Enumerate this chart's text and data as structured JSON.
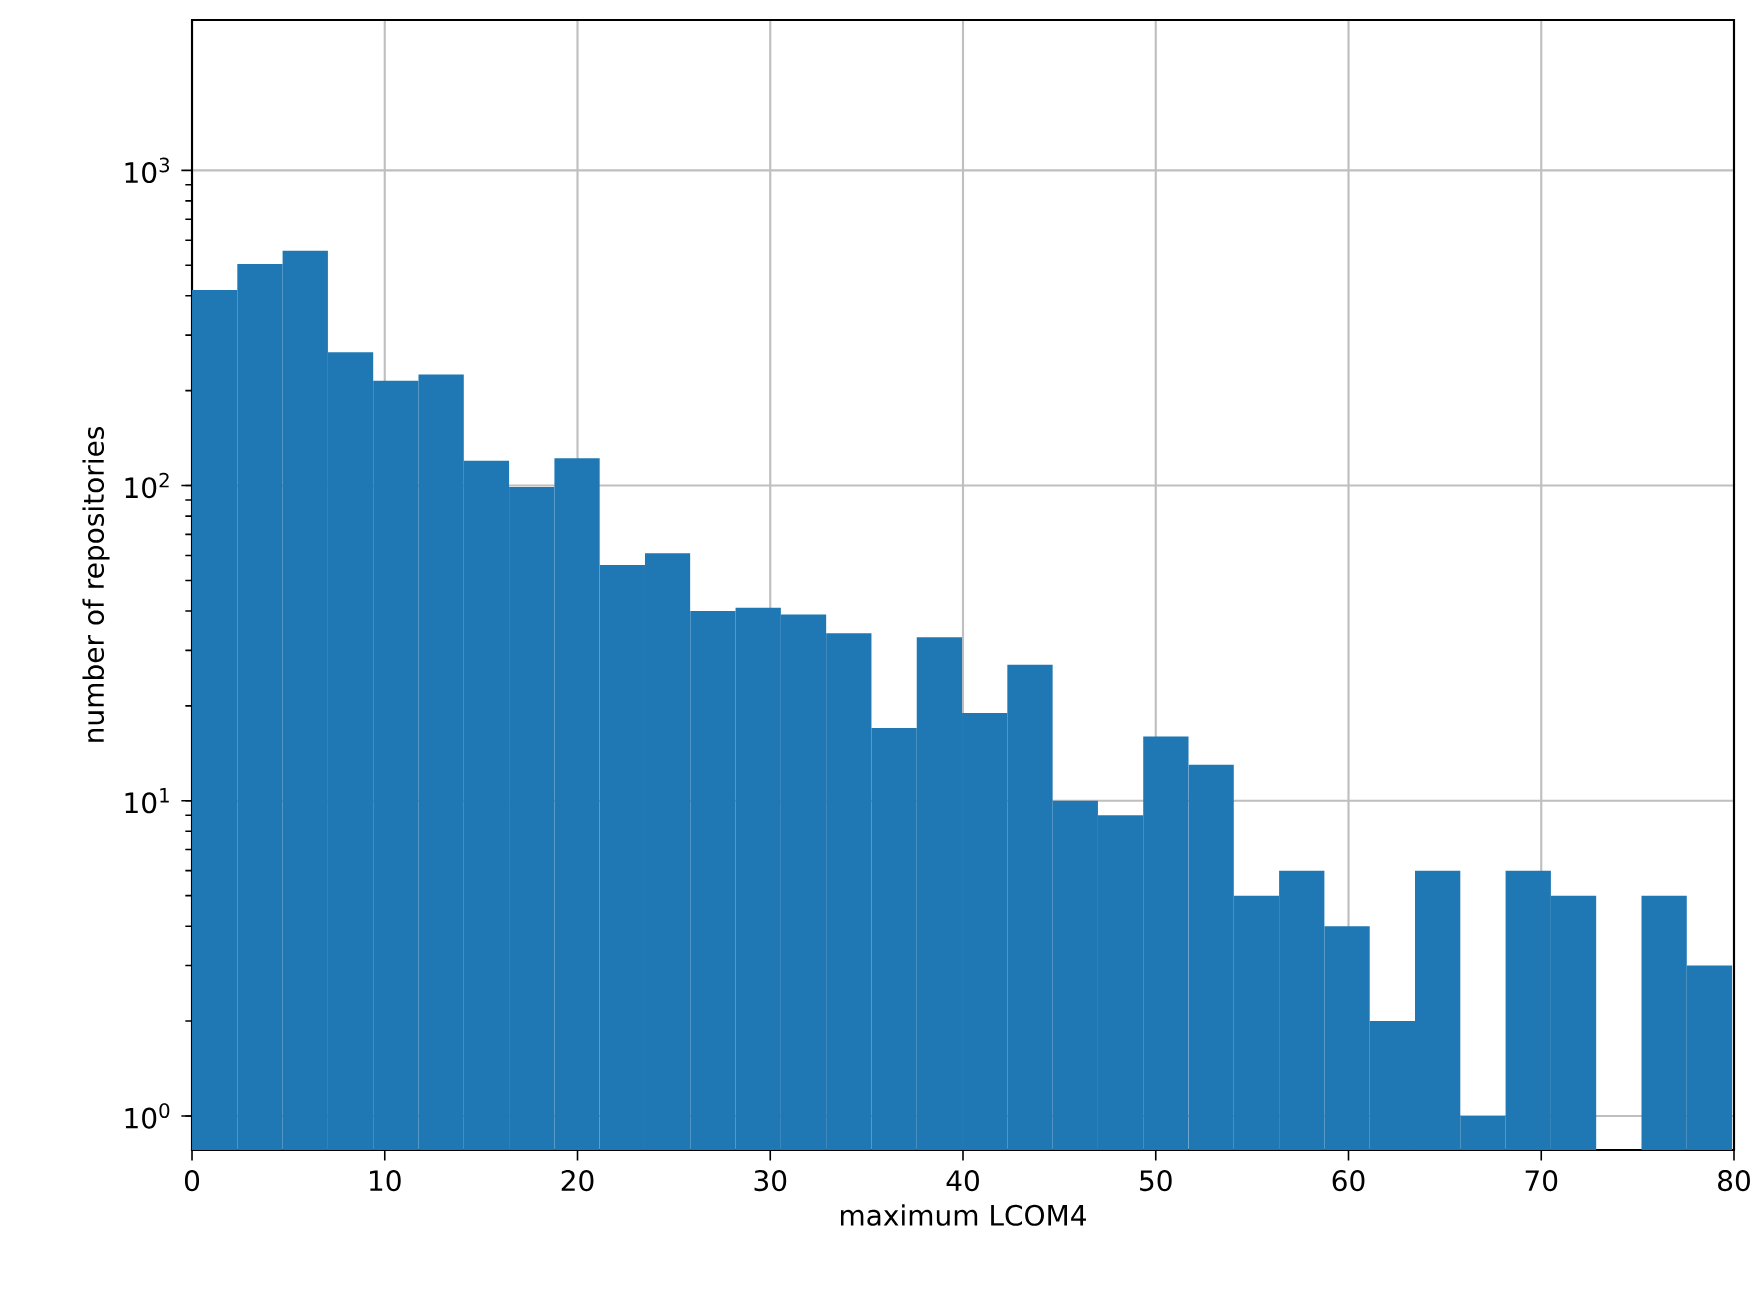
{
  "chart_data": {
    "type": "histogram",
    "xlabel": "maximum LCOM4",
    "ylabel": "number of repositories",
    "bins": [
      0,
      2.35,
      4.7,
      7.05,
      9.4,
      11.75,
      14.1,
      16.45,
      18.8,
      21.15,
      23.5,
      25.85,
      28.2,
      30.55,
      32.9,
      35.25,
      37.6,
      39.95,
      42.3,
      44.65,
      47,
      49.35,
      51.7,
      54.05,
      56.4,
      58.75,
      61.1,
      63.45,
      65.8,
      68.15,
      70.5,
      72.85,
      75.2,
      77.55,
      79.9
    ],
    "values": [
      417,
      505,
      556,
      265,
      215,
      225,
      120,
      99,
      122,
      56,
      61,
      40,
      41,
      39,
      34,
      17,
      33,
      19,
      27,
      10,
      9,
      16,
      13,
      5,
      6,
      4,
      2,
      6,
      1,
      6,
      5,
      null,
      5,
      3
    ],
    "color": "#1f77b4",
    "log": "y",
    "grid": true,
    "xlim": [
      0,
      80
    ],
    "xticks": [
      0,
      10,
      20,
      30,
      40,
      50,
      60,
      70,
      80
    ],
    "ylim": [
      0.78,
      3000
    ],
    "yticks": [
      {
        "value": 1,
        "label": "10$^{0}$"
      },
      {
        "value": 10,
        "label": "10$^{1}$"
      },
      {
        "value": 100,
        "label": "10$^{2}$"
      },
      {
        "value": 1000,
        "label": "10$^{3}$"
      }
    ]
  }
}
